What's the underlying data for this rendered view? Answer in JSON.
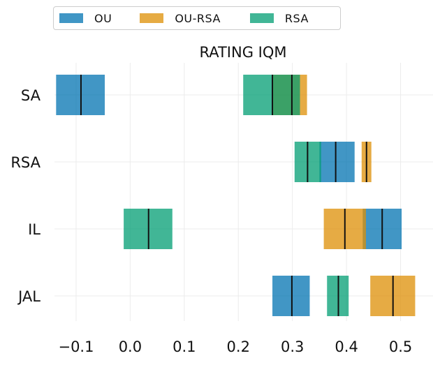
{
  "chart_data": {
    "type": "bar",
    "title": "RATING IQM",
    "categories": [
      "SA",
      "RSA",
      "IL",
      "JAL"
    ],
    "xlim": [
      -0.14,
      0.56
    ],
    "xticks": [
      -0.1,
      0.0,
      0.1,
      0.2,
      0.3,
      0.4,
      0.5
    ],
    "xtick_labels": [
      "−0.1",
      "0.0",
      "0.1",
      "0.2",
      "0.3",
      "0.4",
      "0.5"
    ],
    "grid": true,
    "legend_position": "top-left",
    "series": [
      {
        "name": "OU",
        "color": "#0173b2",
        "intervals": [
          {
            "category": "SA",
            "low": -0.137,
            "high": -0.047,
            "center": -0.091
          },
          {
            "category": "RSA",
            "low": 0.35,
            "high": 0.415,
            "center": 0.38
          },
          {
            "category": "IL",
            "low": 0.43,
            "high": 0.502,
            "center": 0.466
          },
          {
            "category": "JAL",
            "low": 0.263,
            "high": 0.332,
            "center": 0.299
          }
        ]
      },
      {
        "name": "OU-RSA",
        "color": "#de8f05",
        "intervals": [
          {
            "category": "SA",
            "low": 0.264,
            "high": 0.327,
            "center": 0.299
          },
          {
            "category": "RSA",
            "low": 0.428,
            "high": 0.446,
            "center": 0.437
          },
          {
            "category": "IL",
            "low": 0.358,
            "high": 0.436,
            "center": 0.397
          },
          {
            "category": "JAL",
            "low": 0.444,
            "high": 0.527,
            "center": 0.486
          }
        ]
      },
      {
        "name": "RSA",
        "color": "#029e73",
        "intervals": [
          {
            "category": "SA",
            "low": 0.209,
            "high": 0.314,
            "center": 0.263
          },
          {
            "category": "RSA",
            "low": 0.304,
            "high": 0.353,
            "center": 0.328
          },
          {
            "category": "IL",
            "low": -0.012,
            "high": 0.078,
            "center": 0.034
          },
          {
            "category": "JAL",
            "low": 0.364,
            "high": 0.404,
            "center": 0.385
          }
        ]
      }
    ]
  }
}
